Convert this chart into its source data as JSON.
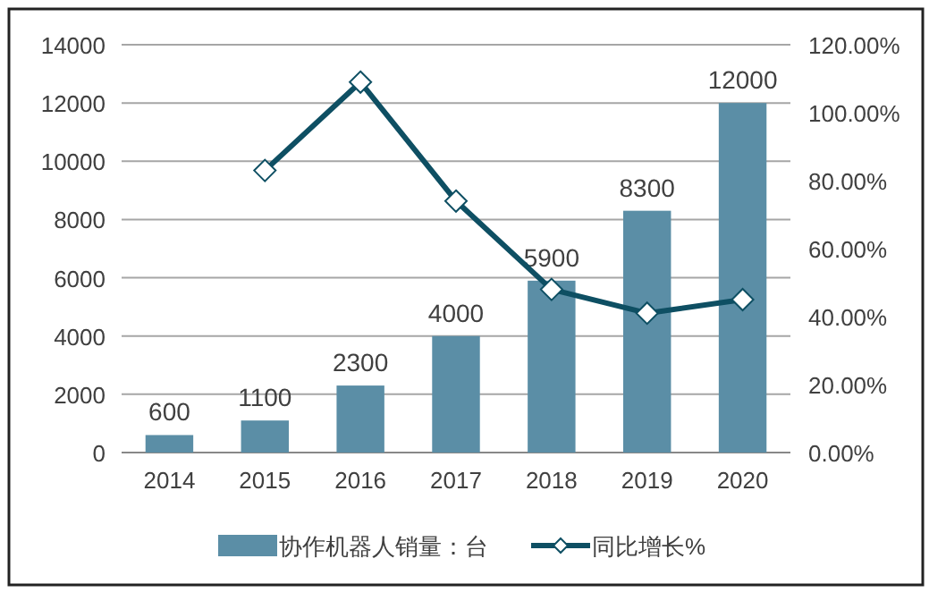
{
  "chart_data": {
    "type": "bar",
    "categories": [
      "2014",
      "2015",
      "2016",
      "2017",
      "2018",
      "2019",
      "2020"
    ],
    "series": [
      {
        "name": "协作机器人销量：台",
        "color": "#5b8ea6",
        "values": [
          600,
          1100,
          2300,
          4000,
          5900,
          8300,
          12000
        ],
        "value_labels": [
          "600",
          "1100",
          "2300",
          "4000",
          "5900",
          "8300",
          "12000"
        ]
      },
      {
        "name": "同比增长%",
        "type": "line",
        "axis": "y2",
        "color": "#0e4f63",
        "marker": "diamond",
        "values": [
          null,
          83,
          109,
          74,
          48,
          41,
          45
        ]
      }
    ],
    "ylim": [
      0,
      14000
    ],
    "yticks": [
      0,
      2000,
      4000,
      6000,
      8000,
      10000,
      12000,
      14000
    ],
    "y2lim": [
      0,
      120
    ],
    "y2ticks": [
      {
        "value": 0,
        "label": "0.00%"
      },
      {
        "value": 20,
        "label": "20.00%"
      },
      {
        "value": 40,
        "label": "40.00%"
      },
      {
        "value": 60,
        "label": "60.00%"
      },
      {
        "value": 80,
        "label": "80.00%"
      },
      {
        "value": 100,
        "label": "100.00%"
      },
      {
        "value": 120,
        "label": "120.00%"
      }
    ],
    "grid": "y",
    "legend": "bottom"
  }
}
